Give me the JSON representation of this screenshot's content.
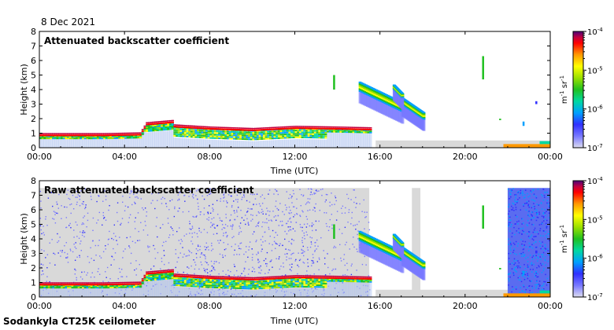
{
  "date": "8 Dec 2021",
  "footer": "Sodankyla CT25K ceilometer",
  "colors": {
    "background": "#d9d9d9",
    "colormap": [
      "#dcdcf0",
      "#7878ff",
      "#3030ff",
      "#00a0ff",
      "#00d8a0",
      "#20c020",
      "#9ae000",
      "#ffff00",
      "#ff9900",
      "#ff0000",
      "#c00040",
      "#4b0078"
    ]
  },
  "chart_data": [
    {
      "type": "heatmap",
      "title": "Attenuated backscatter coefficient",
      "xlabel": "Time (UTC)",
      "ylabel": "Height (km)",
      "xticks": [
        "00:00",
        "04:00",
        "08:00",
        "12:00",
        "16:00",
        "20:00",
        "00:00"
      ],
      "yticks": [
        "0",
        "1",
        "2",
        "3",
        "4",
        "5",
        "6",
        "7",
        "8"
      ],
      "xlim_hours": [
        0,
        24
      ],
      "ylim": [
        0,
        8
      ],
      "colorbar": {
        "label": "m-1 sr-1",
        "scale": "log",
        "ticks": [
          "10-7",
          "10-6",
          "10-5",
          "10-4"
        ]
      },
      "features": [
        {
          "name": "cloud-base",
          "t": [
            0,
            3,
            4.7,
            5,
            6.2,
            6.3,
            8,
            10,
            12,
            14,
            15.5
          ],
          "h": [
            0.85,
            0.85,
            0.9,
            1.6,
            1.75,
            1.45,
            1.3,
            1.2,
            1.35,
            1.3,
            1.25
          ]
        },
        {
          "name": "mid-cloud",
          "t": [
            15.0,
            17.2
          ],
          "h": [
            4.2,
            2.8
          ]
        },
        {
          "name": "mid-cloud-2",
          "t": [
            17.0,
            18.0
          ],
          "h": [
            3.2,
            2.2
          ]
        },
        {
          "name": "precip-column",
          "t": [
            20.8,
            20.8
          ],
          "h": [
            6.3,
            4.7
          ]
        }
      ]
    },
    {
      "type": "heatmap",
      "title": "Raw attenuated backscatter coefficient",
      "xlabel": "Time (UTC)",
      "ylabel": "Height (km)",
      "xticks": [
        "00:00",
        "04:00",
        "08:00",
        "12:00",
        "16:00",
        "20:00",
        "00:00"
      ],
      "yticks": [
        "0",
        "1",
        "2",
        "3",
        "4",
        "5",
        "6",
        "7",
        "8"
      ],
      "xlim_hours": [
        0,
        24
      ],
      "ylim": [
        0,
        8
      ],
      "colorbar": {
        "label": "m-1 sr-1",
        "scale": "log",
        "ticks": [
          "10-7",
          "10-6",
          "10-5",
          "10-4"
        ]
      },
      "noise_region": {
        "t": [
          0,
          15.5
        ],
        "h": [
          0,
          7.5
        ]
      },
      "noise_band": {
        "t": [
          22.0,
          24.0
        ],
        "h": [
          0,
          7.5
        ]
      }
    }
  ]
}
